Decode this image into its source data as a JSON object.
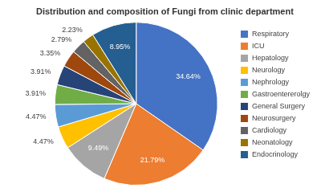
{
  "chart_data": {
    "type": "pie",
    "title": "Distribution and composition of Fungi from clinic department",
    "categories": [
      "Respiratory",
      "ICU",
      "Hepatology",
      "Neurology",
      "Nephrology",
      "Gastroentererolgy",
      "General Surgery",
      "Neurosurgery",
      "Cardiology",
      "Neonatology",
      "Endocrinology"
    ],
    "values": [
      34.64,
      21.79,
      9.49,
      4.47,
      4.47,
      3.91,
      3.91,
      3.35,
      2.79,
      2.23,
      8.95
    ],
    "value_labels": [
      "34.64%",
      "21.79%",
      "9.49%",
      "4.47%",
      "4.47%",
      "3.91%",
      "3.91%",
      "3.35%",
      "2.79%",
      "2.23%",
      "8.95%"
    ],
    "colors": [
      "#4472c4",
      "#ed7d31",
      "#a5a5a5",
      "#ffc000",
      "#5b9bd5",
      "#70ad47",
      "#264478",
      "#9e480e",
      "#636363",
      "#997300",
      "#255e91"
    ],
    "data_labels": true,
    "legend": "right"
  }
}
